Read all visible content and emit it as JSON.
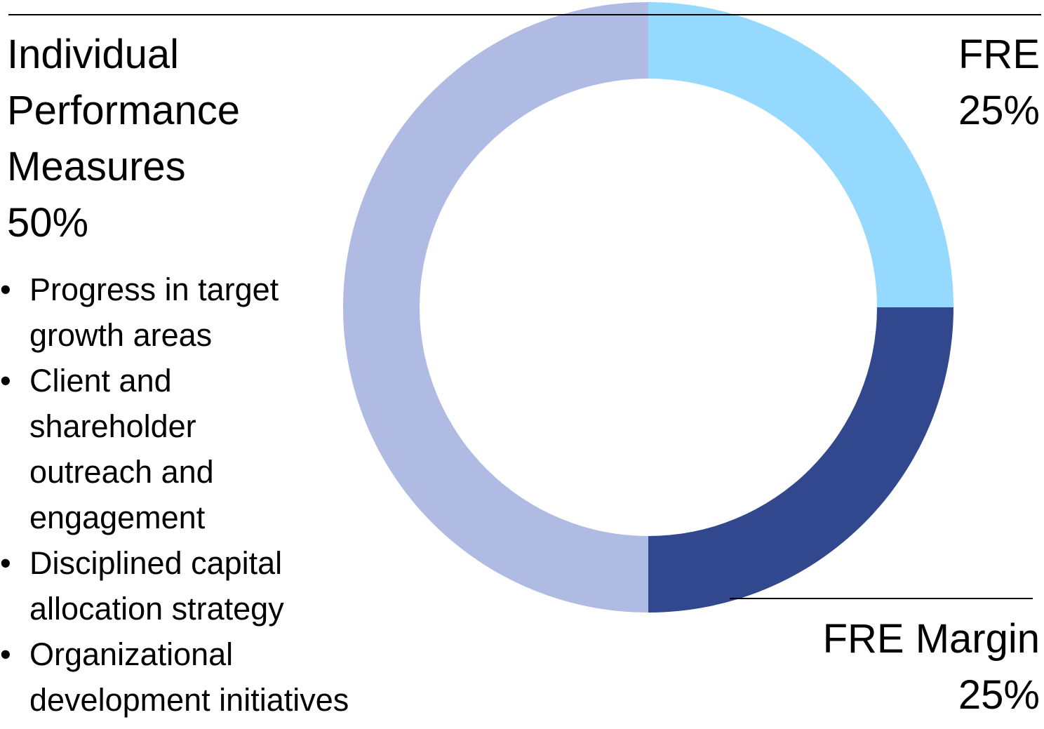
{
  "chart_data": {
    "type": "pie",
    "variant": "donut",
    "slices": [
      {
        "label": "FRE",
        "value": 25,
        "value_label": "25%",
        "color": "#96D9FF"
      },
      {
        "label": "FRE Margin",
        "value": 25,
        "value_label": "25%",
        "color": "#31488F"
      },
      {
        "label": "Individual Performance Measures",
        "value": 50,
        "value_label": "50%",
        "color": "#AFBBE3"
      }
    ]
  },
  "labels": {
    "individual": "Individual\nPerformance\nMeasures\n50%",
    "fre": "FRE\n25%",
    "fre_margin": "FRE Margin\n25%"
  },
  "measures": [
    "Progress in target\ngrowth areas",
    "Client and\nshareholder\noutreach and\nengagement",
    "Disciplined capital\nallocation strategy",
    "Organizational\ndevelopment initiatives"
  ],
  "bullet_glyph": "•"
}
